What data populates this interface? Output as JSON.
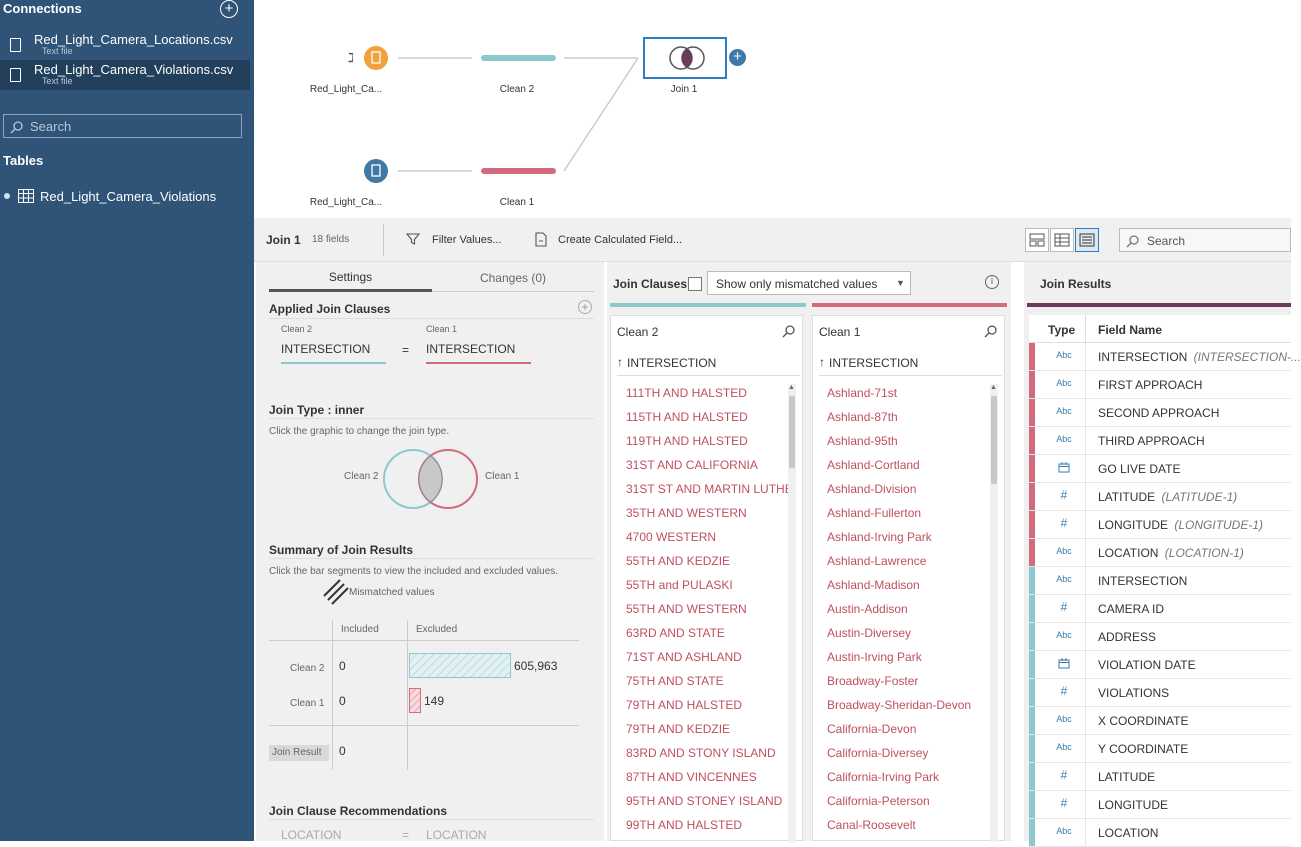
{
  "sidebar": {
    "connections_title": "Connections",
    "add_icon": "plus-circle-icon",
    "connections": [
      {
        "name": "Red_Light_Camera_Locations.csv",
        "type": "Text file"
      },
      {
        "name": "Red_Light_Camera_Violations.csv",
        "type": "Text file"
      }
    ],
    "search_placeholder": "Search",
    "tables_title": "Tables",
    "tables": [
      "Red_Light_Camera_Violations"
    ]
  },
  "flow": {
    "input_top_label": "Red_Light_Ca...",
    "input_bottom_label": "Red_Light_Ca...",
    "clean2_label": "Clean 2",
    "clean1_label": "Clean 1",
    "join_label": "Join 1",
    "colors": {
      "orange": "#f0a13c",
      "blue": "#3f79a5",
      "teal": "#8ec8cf",
      "pink": "#d46b7c"
    }
  },
  "toolbar": {
    "step_name": "Join 1",
    "fields_count": "18 fields",
    "filter_label": "Filter Values...",
    "calc_label": "Create Calculated Field...",
    "search_placeholder": "Search"
  },
  "settings": {
    "tab_settings": "Settings",
    "tab_changes": "Changes (0)",
    "applied_title": "Applied Join Clauses",
    "left_source": "Clean 2",
    "right_source": "Clean 1",
    "left_field": "INTERSECTION",
    "operator": "=",
    "right_field": "INTERSECTION",
    "join_type_title": "Join Type : inner",
    "join_type_hint": "Click the graphic to change the join type.",
    "venn_left": "Clean 2",
    "venn_right": "Clean 1",
    "summary_title": "Summary of Join Results",
    "summary_hint": "Click the bar segments to view the included and excluded values.",
    "mismatched_label": "Mismatched values",
    "col_included": "Included",
    "col_excluded": "Excluded",
    "rows": [
      {
        "label": "Clean 2",
        "included": "0",
        "excluded": "605,963"
      },
      {
        "label": "Clean 1",
        "included": "0",
        "excluded": "149"
      }
    ],
    "join_result_label": "Join Result",
    "join_result_value": "0",
    "recommend_title": "Join Clause Recommendations",
    "recommend_left": "LOCATION",
    "recommend_op": "=",
    "recommend_right": "LOCATION"
  },
  "join_clauses": {
    "title": "Join Clauses",
    "dropdown_value": "Show only mismatched values",
    "left_title": "Clean 2",
    "right_title": "Clean 1",
    "left_field": "INTERSECTION",
    "right_field": "INTERSECTION",
    "left_values": [
      "111TH AND HALSTED",
      "115TH AND HALSTED",
      "119TH AND HALSTED",
      "31ST AND CALIFORNIA",
      "31ST ST AND MARTIN LUTHE",
      "35TH AND WESTERN",
      "4700 WESTERN",
      "55TH AND KEDZIE",
      "55TH and PULASKI",
      "55TH AND WESTERN",
      "63RD AND STATE",
      "71ST AND ASHLAND",
      "75TH AND STATE",
      "79TH AND HALSTED",
      "79TH AND KEDZIE",
      "83RD AND STONY ISLAND",
      "87TH AND VINCENNES",
      "95TH AND STONEY ISLAND",
      "99TH AND HALSTED"
    ],
    "right_values": [
      "Ashland-71st",
      "Ashland-87th",
      "Ashland-95th",
      "Ashland-Cortland",
      "Ashland-Division",
      "Ashland-Fullerton",
      "Ashland-Irving Park",
      "Ashland-Lawrence",
      "Ashland-Madison",
      "Austin-Addison",
      "Austin-Diversey",
      "Austin-Irving Park",
      "Broadway-Foster",
      "Broadway-Sheridan-Devon",
      "California-Devon",
      "California-Diversey",
      "California-Irving Park",
      "California-Peterson",
      "Canal-Roosevelt"
    ]
  },
  "join_results": {
    "title": "Join Results",
    "col_type": "Type",
    "col_field": "Field Name",
    "fields": [
      {
        "type": "Abc",
        "name": "INTERSECTION",
        "alias": "(INTERSECTION-...",
        "source": "pink"
      },
      {
        "type": "Abc",
        "name": "FIRST APPROACH",
        "alias": "",
        "source": "pink"
      },
      {
        "type": "Abc",
        "name": "SECOND APPROACH",
        "alias": "",
        "source": "pink"
      },
      {
        "type": "Abc",
        "name": "THIRD APPROACH",
        "alias": "",
        "source": "pink"
      },
      {
        "type": "date",
        "name": "GO LIVE DATE",
        "alias": "",
        "source": "pink"
      },
      {
        "type": "#",
        "name": "LATITUDE",
        "alias": "(LATITUDE-1)",
        "source": "pink"
      },
      {
        "type": "#",
        "name": "LONGITUDE",
        "alias": "(LONGITUDE-1)",
        "source": "pink"
      },
      {
        "type": "Abc",
        "name": "LOCATION",
        "alias": "(LOCATION-1)",
        "source": "pink"
      },
      {
        "type": "Abc",
        "name": "INTERSECTION",
        "alias": "",
        "source": "teal"
      },
      {
        "type": "#",
        "name": "CAMERA ID",
        "alias": "",
        "source": "teal"
      },
      {
        "type": "Abc",
        "name": "ADDRESS",
        "alias": "",
        "source": "teal"
      },
      {
        "type": "date",
        "name": "VIOLATION DATE",
        "alias": "",
        "source": "teal"
      },
      {
        "type": "#",
        "name": "VIOLATIONS",
        "alias": "",
        "source": "teal"
      },
      {
        "type": "Abc",
        "name": "X COORDINATE",
        "alias": "",
        "source": "teal"
      },
      {
        "type": "Abc",
        "name": "Y COORDINATE",
        "alias": "",
        "source": "teal"
      },
      {
        "type": "#",
        "name": "LATITUDE",
        "alias": "",
        "source": "teal"
      },
      {
        "type": "#",
        "name": "LONGITUDE",
        "alias": "",
        "source": "teal"
      },
      {
        "type": "Abc",
        "name": "LOCATION",
        "alias": "",
        "source": "teal"
      }
    ]
  }
}
